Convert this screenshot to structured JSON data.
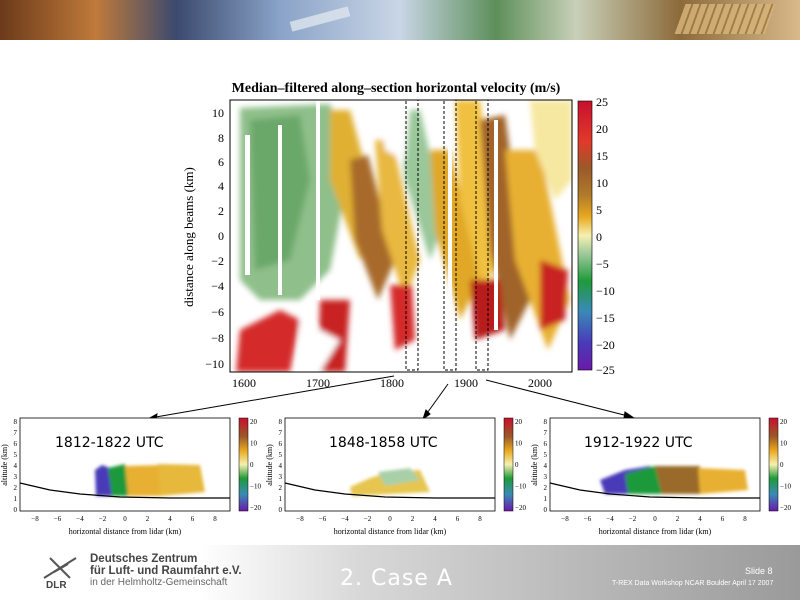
{
  "main_chart": {
    "title": "Median–filtered along–section horizontal velocity (m/s)",
    "ylabel": "distance along beams (km)",
    "x_ticks": [
      "1600",
      "1700",
      "1800",
      "1900",
      "2000"
    ],
    "y_ticks": [
      "10",
      "8",
      "6",
      "4",
      "2",
      "0",
      "−2",
      "−4",
      "−6",
      "−8",
      "−10"
    ],
    "colorbar_ticks": [
      "25",
      "20",
      "15",
      "10",
      "5",
      "0",
      "−5",
      "−10",
      "−15",
      "−20",
      "−25"
    ]
  },
  "small_charts": [
    {
      "label": "1812-1822 UTC"
    },
    {
      "label": "1848-1858 UTC"
    },
    {
      "label": "1912-1922 UTC"
    }
  ],
  "small_axes": {
    "ylabel": "altitude (km)",
    "xlabel": "horizontal distance from lidar (km)",
    "x_ticks": [
      "−8",
      "−6",
      "−4",
      "−2",
      "0",
      "2",
      "4",
      "6",
      "8"
    ],
    "y_ticks": [
      "8",
      "7",
      "6",
      "5",
      "4",
      "3",
      "2",
      "1",
      "0"
    ],
    "colorbar_ticks": [
      "20",
      "10",
      "0",
      "−10",
      "−20"
    ]
  },
  "footer": {
    "org_line1": "Deutsches Zentrum",
    "org_line2": "für Luft- und Raumfahrt e.V.",
    "org_line3": "in der Helmholtz-Gemeinschaft",
    "dlr": "DLR",
    "slide_title": "2. Case A",
    "slide_number": "Slide 8",
    "conference": "T-REX Data Workshop NCAR Boulder April 17 2007"
  },
  "chart_data": [
    {
      "type": "heatmap",
      "title": "Median–filtered along–section horizontal velocity (m/s)",
      "xlabel": "",
      "ylabel": "distance along beams (km)",
      "xlim": [
        1580,
        2050
      ],
      "ylim": [
        -11,
        11
      ],
      "colorbar": {
        "unit": "m/s",
        "range": [
          -25,
          25
        ]
      },
      "selected_intervals": [
        [
          1812,
          1822
        ],
        [
          1848,
          1858
        ],
        [
          1912,
          1922
        ]
      ]
    },
    {
      "type": "heatmap",
      "title": "1812-1822 UTC",
      "xlabel": "horizontal distance from lidar (km)",
      "ylabel": "altitude (km)",
      "xlim": [
        -9,
        9
      ],
      "ylim": [
        0,
        8
      ],
      "colorbar": {
        "range": [
          -20,
          20
        ]
      }
    },
    {
      "type": "heatmap",
      "title": "1848-1858 UTC",
      "xlabel": "horizontal distance from lidar (km)",
      "ylabel": "altitude (km)",
      "xlim": [
        -9,
        9
      ],
      "ylim": [
        0,
        8
      ],
      "colorbar": {
        "range": [
          -20,
          20
        ]
      }
    },
    {
      "type": "heatmap",
      "title": "1912-1922 UTC",
      "xlabel": "horizontal distance from lidar (km)",
      "ylabel": "altitude (km)",
      "xlim": [
        -9,
        9
      ],
      "ylim": [
        0,
        8
      ],
      "colorbar": {
        "range": [
          -20,
          20
        ]
      }
    }
  ]
}
